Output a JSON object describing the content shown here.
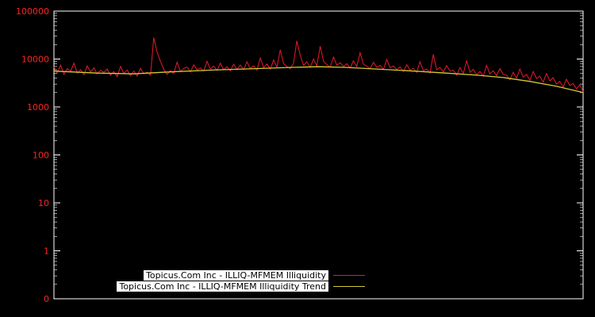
{
  "colors": {
    "background": "#000000",
    "frame": "#ffffff",
    "tick_label": "#ff2222",
    "series_red": "#e8192c",
    "trend_yellow": "#d6c832",
    "legend_text": "#000000",
    "legend_bg": "#ffffff"
  },
  "chart_data": {
    "type": "line",
    "title": "",
    "xlabel": "",
    "ylabel": "",
    "yscale": "log",
    "ylim_top": 100000,
    "ylim_bottom": 0.1,
    "grid": false,
    "legend_position": "bottom-center-inside",
    "yticks": [
      {
        "label": "100000",
        "v": 100000
      },
      {
        "label": "10000",
        "v": 10000
      },
      {
        "label": "1000",
        "v": 1000
      },
      {
        "label": "100",
        "v": 100
      },
      {
        "label": "10",
        "v": 10
      },
      {
        "label": "1",
        "v": 1
      },
      {
        "label": "0",
        "v": 0.1
      }
    ],
    "series": [
      {
        "name": "Topicus.Com Inc - ILLIQ-MFMEM Illiquidity",
        "color": "#e8192c",
        "values": [
          6800,
          5200,
          7500,
          4800,
          6300,
          5600,
          8200,
          5100,
          6000,
          4700,
          7200,
          5400,
          6500,
          4900,
          5800,
          5300,
          6200,
          4600,
          5500,
          4300,
          7000,
          5000,
          5900,
          4500,
          5600,
          4400,
          6400,
          4900,
          5300,
          4600,
          28000,
          14000,
          9000,
          6100,
          4800,
          5700,
          5000,
          8600,
          5500,
          6300,
          6800,
          5400,
          7600,
          5900,
          6500,
          5600,
          9000,
          6200,
          7100,
          5800,
          8200,
          6000,
          6900,
          5700,
          7800,
          6100,
          7500,
          6000,
          8800,
          6400,
          7200,
          5900,
          10500,
          6600,
          7900,
          6200,
          9500,
          6800,
          15500,
          8000,
          7000,
          6300,
          8200,
          24000,
          12000,
          7400,
          8800,
          6700,
          10000,
          7200,
          18500,
          9000,
          7600,
          6800,
          11000,
          7500,
          8400,
          6900,
          8000,
          6500,
          9200,
          7000,
          13500,
          7800,
          7100,
          6300,
          8600,
          6700,
          7400,
          6100,
          9800,
          6600,
          7200,
          6000,
          6800,
          5500,
          7600,
          5900,
          6400,
          5300,
          8800,
          5700,
          6200,
          5100,
          12500,
          6000,
          6700,
          5400,
          7300,
          5600,
          5800,
          4600,
          6600,
          5000,
          9200,
          5300,
          6100,
          4700,
          5500,
          4400,
          7400,
          4900,
          5700,
          4500,
          6300,
          4800,
          4600,
          3700,
          5300,
          4000,
          6200,
          4200,
          4800,
          3600,
          5500,
          3900,
          4400,
          3300,
          5000,
          3500,
          4100,
          3000,
          3400,
          2600,
          3800,
          2800,
          3100,
          2400,
          2900,
          2100
        ]
      },
      {
        "name": "Topicus.Com Inc - ILLIQ-MFMEM Illiquidity Trend",
        "color": "#d6c832",
        "trend_points": [
          {
            "x": 0.0,
            "v": 5600
          },
          {
            "x": 0.08,
            "v": 5100
          },
          {
            "x": 0.15,
            "v": 4900
          },
          {
            "x": 0.22,
            "v": 5400
          },
          {
            "x": 0.3,
            "v": 5900
          },
          {
            "x": 0.38,
            "v": 6300
          },
          {
            "x": 0.45,
            "v": 6700
          },
          {
            "x": 0.5,
            "v": 6900
          },
          {
            "x": 0.55,
            "v": 6700
          },
          {
            "x": 0.62,
            "v": 6100
          },
          {
            "x": 0.68,
            "v": 5600
          },
          {
            "x": 0.74,
            "v": 5100
          },
          {
            "x": 0.8,
            "v": 4600
          },
          {
            "x": 0.85,
            "v": 4100
          },
          {
            "x": 0.9,
            "v": 3400
          },
          {
            "x": 0.95,
            "v": 2700
          },
          {
            "x": 1.0,
            "v": 2000
          }
        ]
      }
    ],
    "legend": {
      "entries": [
        {
          "label": "Topicus.Com Inc - ILLIQ-MFMEM Illiquidity"
        },
        {
          "label": "Topicus.Com Inc - ILLIQ-MFMEM Illiquidity Trend"
        }
      ]
    }
  }
}
